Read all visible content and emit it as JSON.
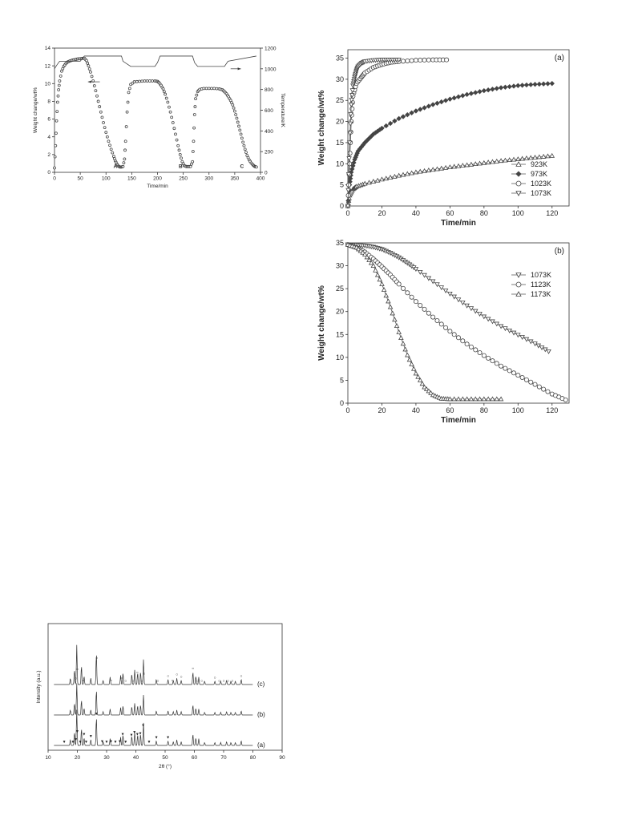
{
  "chart_data": [
    {
      "id": "tga_cycles",
      "type": "line",
      "title": "",
      "xlabel": "Time/min",
      "ylabel": "Weight change/wt%",
      "y2label": "Temperature/K",
      "xlim": [
        0,
        400
      ],
      "ylim": [
        0,
        14
      ],
      "y2lim": [
        0,
        1200
      ],
      "xticks": [
        "0",
        "50",
        "100",
        "150",
        "200",
        "250",
        "300",
        "350",
        "400"
      ],
      "yticks": [
        "0",
        "2",
        "4",
        "6",
        "8",
        "10",
        "12",
        "14"
      ],
      "y2ticks": [
        "0",
        "200",
        "400",
        "600",
        "800",
        "1000",
        "1200"
      ],
      "grid": false,
      "series": [
        {
          "name": "",
          "marker": "circle",
          "axis": "left",
          "x": [
            0,
            2,
            4,
            6,
            8,
            10,
            14,
            18,
            22,
            26,
            30,
            35,
            40,
            45,
            50,
            55,
            58,
            62,
            66,
            70,
            75,
            80,
            85,
            90,
            95,
            100,
            105,
            110,
            115,
            118,
            121,
            124,
            127,
            130,
            133,
            136,
            138,
            141,
            144,
            148,
            155,
            165,
            175,
            185,
            195,
            200,
            203,
            207,
            211,
            215,
            220,
            225,
            230,
            235,
            240,
            244,
            248,
            252,
            256,
            260,
            264,
            268,
            270,
            272,
            274,
            278,
            282,
            290,
            300,
            310,
            320,
            326,
            330,
            334,
            338,
            342,
            346,
            350,
            354,
            358,
            362,
            366,
            370,
            374,
            378,
            382,
            386,
            389,
            392
          ],
          "values": [
            0.5,
            3,
            5.8,
            7.9,
            9.3,
            10.3,
            11.4,
            11.95,
            12.25,
            12.45,
            12.55,
            12.65,
            12.7,
            12.78,
            12.8,
            12.85,
            12.85,
            12.6,
            12.0,
            11.3,
            10.3,
            9.2,
            8.0,
            6.8,
            5.6,
            4.5,
            3.5,
            2.6,
            1.8,
            1.3,
            0.95,
            0.7,
            0.6,
            0.6,
            0.65,
            1.5,
            3.5,
            6.8,
            9.0,
            9.9,
            10.2,
            10.25,
            10.3,
            10.3,
            10.3,
            10.25,
            10.1,
            9.8,
            9.4,
            8.8,
            7.9,
            6.8,
            5.6,
            4.3,
            3.0,
            2.0,
            1.2,
            0.75,
            0.65,
            0.65,
            0.65,
            1.2,
            3.5,
            6.5,
            8.3,
            9.1,
            9.35,
            9.45,
            9.45,
            9.45,
            9.4,
            9.3,
            9.1,
            8.85,
            8.5,
            8.1,
            7.6,
            6.9,
            6.1,
            5.2,
            4.3,
            3.4,
            2.6,
            1.9,
            1.4,
            1.05,
            0.8,
            0.65,
            0.6
          ]
        },
        {
          "name": "",
          "marker": "none",
          "axis": "right",
          "x": [
            0,
            5,
            10,
            50,
            58,
            130,
            133,
            148,
            195,
            200,
            205,
            268,
            272,
            278,
            330,
            337,
            392
          ],
          "values": [
            1000,
            1040,
            1073,
            1073,
            1123,
            1123,
            1073,
            1023,
            1023,
            1060,
            1123,
            1123,
            1060,
            1023,
            1023,
            1073,
            1123
          ]
        }
      ],
      "annotations": [
        {
          "text": "A",
          "x": 118,
          "y": 0.7
        },
        {
          "text": "B",
          "x": 245,
          "y": 0.7
        },
        {
          "text": "C",
          "x": 364,
          "y": 0.7
        }
      ]
    },
    {
      "id": "absorption_a",
      "type": "line",
      "panel_label": "(a)",
      "title": "",
      "xlabel": "Time/min",
      "ylabel": "Weight change/wt%",
      "xlim": [
        0,
        130
      ],
      "ylim": [
        0,
        37
      ],
      "xticks": [
        "0",
        "20",
        "40",
        "60",
        "80",
        "100",
        "120"
      ],
      "yticks": [
        "0",
        "5",
        "10",
        "15",
        "20",
        "25",
        "30",
        "35"
      ],
      "grid": false,
      "legend_position": "bottom-right",
      "series": [
        {
          "name": "923K",
          "marker": "triangle-up",
          "x": [
            0,
            1,
            3,
            5,
            10,
            20,
            30,
            40,
            50,
            60,
            70,
            80,
            90,
            100,
            110,
            120
          ],
          "values": [
            0,
            2.5,
            4.0,
            4.6,
            5.3,
            6.3,
            7.2,
            8.0,
            8.6,
            9.2,
            9.7,
            10.2,
            10.7,
            11.1,
            11.5,
            11.9
          ]
        },
        {
          "name": "973K",
          "marker": "diamond",
          "x": [
            0,
            1,
            2,
            4,
            6,
            10,
            15,
            20,
            30,
            40,
            50,
            60,
            70,
            80,
            90,
            100,
            110,
            120
          ],
          "values": [
            0,
            5,
            8,
            11,
            13,
            15,
            17,
            18.4,
            20.7,
            22.5,
            24,
            25.3,
            26.4,
            27.3,
            28,
            28.5,
            28.8,
            29.0
          ]
        },
        {
          "name": "1023K",
          "marker": "circle",
          "x": [
            0,
            1,
            2,
            3,
            5,
            8,
            10,
            15,
            20,
            25,
            30,
            40,
            50,
            58
          ],
          "values": [
            0,
            10,
            20,
            26,
            29,
            30.5,
            31.5,
            32.8,
            33.5,
            34,
            34.2,
            34.5,
            34.6,
            34.6
          ]
        },
        {
          "name": "1073K",
          "marker": "triangle-down",
          "x": [
            0,
            1,
            2,
            3,
            4,
            5,
            6,
            8,
            10,
            15,
            20,
            25,
            30
          ],
          "values": [
            0,
            15,
            24,
            28.5,
            30.5,
            32,
            33,
            33.8,
            34.2,
            34.5,
            34.6,
            34.6,
            34.6
          ]
        }
      ]
    },
    {
      "id": "desorption_b",
      "type": "line",
      "panel_label": "(b)",
      "title": "",
      "xlabel": "Time/min",
      "ylabel": "Weight change/wt%",
      "xlim": [
        0,
        130
      ],
      "ylim": [
        0,
        35
      ],
      "xticks": [
        "0",
        "20",
        "40",
        "60",
        "80",
        "100",
        "120"
      ],
      "yticks": [
        "0",
        "5",
        "10",
        "15",
        "20",
        "25",
        "30",
        "35"
      ],
      "grid": false,
      "legend_position": "top-right",
      "series": [
        {
          "name": "1073K",
          "marker": "triangle-down",
          "x": [
            0,
            5,
            10,
            15,
            20,
            25,
            30,
            35,
            40,
            50,
            60,
            70,
            80,
            90,
            100,
            110,
            118
          ],
          "values": [
            34.6,
            34.5,
            34.4,
            34.1,
            33.6,
            32.8,
            31.8,
            30.6,
            29.3,
            26.6,
            23.9,
            21.3,
            18.9,
            16.8,
            14.9,
            13.0,
            11.3
          ]
        },
        {
          "name": "1123K",
          "marker": "circle",
          "x": [
            0,
            5,
            10,
            15,
            20,
            25,
            30,
            40,
            50,
            60,
            70,
            80,
            90,
            100,
            110,
            120,
            128
          ],
          "values": [
            34.6,
            34.0,
            33.0,
            31.5,
            29.8,
            28.0,
            26.0,
            22.2,
            18.8,
            15.7,
            12.9,
            10.4,
            8.1,
            6.1,
            4.1,
            2.0,
            0.7
          ]
        },
        {
          "name": "1173K",
          "marker": "triangle-up",
          "x": [
            0,
            5,
            10,
            15,
            20,
            25,
            30,
            35,
            40,
            45,
            50,
            55,
            60,
            70,
            80,
            90
          ],
          "values": [
            34.6,
            34.0,
            32.5,
            30.0,
            26.0,
            21.0,
            15.5,
            10.5,
            6.5,
            3.5,
            1.8,
            1.0,
            0.9,
            0.9,
            0.9,
            0.9
          ]
        }
      ]
    },
    {
      "id": "xrd",
      "type": "line",
      "title": "",
      "xlabel": "2θ (°)",
      "ylabel": "Intensity (a.u.)",
      "xlim": [
        10,
        90
      ],
      "xticks": [
        "10",
        "20",
        "30",
        "40",
        "50",
        "60",
        "70",
        "80",
        "90"
      ],
      "grid": false,
      "peaks": [
        [
          17.6,
          0.15
        ],
        [
          19.0,
          0.35
        ],
        [
          19.8,
          0.95
        ],
        [
          21.4,
          0.45
        ],
        [
          22.3,
          0.2
        ],
        [
          24.6,
          0.15
        ],
        [
          26.5,
          0.75
        ],
        [
          28.8,
          0.1
        ],
        [
          31.2,
          0.18
        ],
        [
          34.8,
          0.22
        ],
        [
          35.6,
          0.28
        ],
        [
          38.6,
          0.25
        ],
        [
          39.6,
          0.35
        ],
        [
          40.6,
          0.28
        ],
        [
          41.6,
          0.3
        ],
        [
          42.6,
          0.6
        ],
        [
          47.0,
          0.12
        ],
        [
          51.0,
          0.12
        ],
        [
          52.8,
          0.1
        ],
        [
          54.0,
          0.15
        ],
        [
          55.5,
          0.1
        ],
        [
          59.5,
          0.3
        ],
        [
          60.5,
          0.2
        ],
        [
          61.5,
          0.18
        ],
        [
          63.5,
          0.08
        ],
        [
          67.0,
          0.08
        ],
        [
          69.0,
          0.08
        ],
        [
          71.0,
          0.1
        ],
        [
          72.5,
          0.08
        ],
        [
          74.0,
          0.08
        ],
        [
          76.0,
          0.12
        ]
      ],
      "series": [
        {
          "name": "(c)",
          "offset": 2.0,
          "scale": 1.0,
          "marker_symbol": "○",
          "marker_x": [
            19.5,
            20.0,
            22.0,
            26.6,
            31.5,
            35.0,
            36.5,
            39.0,
            40.5,
            42.0,
            42.8,
            47.5,
            51.0,
            52.5,
            54.0,
            55.5,
            59.5,
            61.0,
            62.5,
            67.0,
            68.5,
            70.0,
            71.5,
            73.0,
            76.0
          ]
        },
        {
          "name": "(b)",
          "offset": 1.0,
          "scale": 0.8,
          "marker_symbol": "",
          "marker_x": []
        },
        {
          "name": "(a)",
          "offset": 0.0,
          "scale": 0.9,
          "marker_symbol": "▼",
          "marker_x": [
            15.5,
            18.5,
            19.5,
            20.0,
            21.0,
            22.3,
            23.0,
            24.6,
            26.5,
            28.5,
            30.0,
            31.5,
            33.0,
            34.5,
            35.5,
            36.5,
            38.5,
            39.5,
            40.5,
            41.5,
            42.5,
            44.5,
            47.0,
            51.0
          ]
        }
      ]
    }
  ]
}
